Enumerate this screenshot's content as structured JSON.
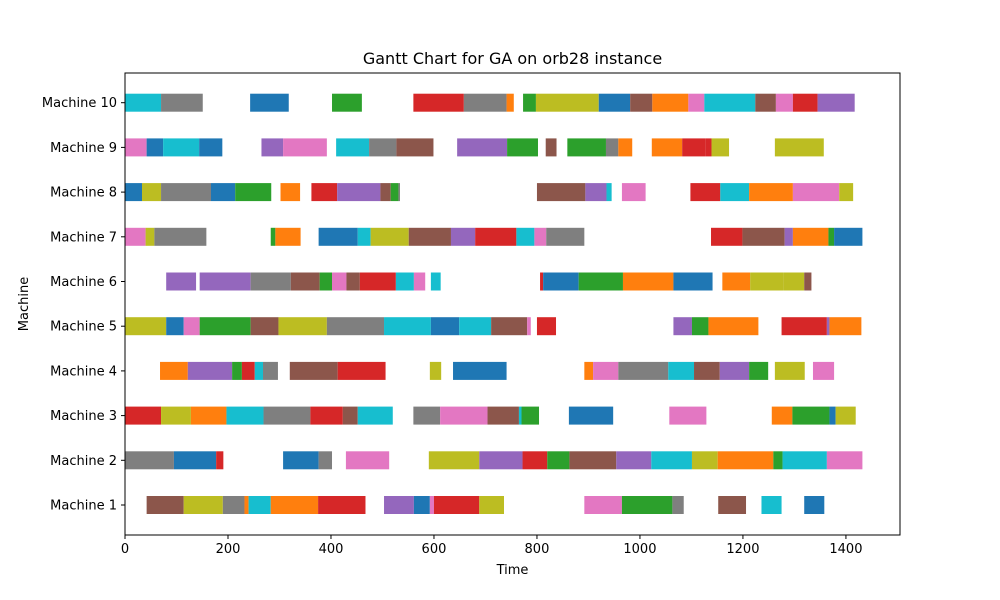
{
  "chart_data": {
    "type": "gantt",
    "title": "Gantt Chart for GA on orb28 instance",
    "xlabel": "Time",
    "ylabel": "Machine",
    "xlim": [
      0,
      1505
    ],
    "xticks": [
      0,
      200,
      400,
      600,
      800,
      1000,
      1200,
      1400
    ],
    "machines": [
      "Machine 1",
      "Machine 2",
      "Machine 3",
      "Machine 4",
      "Machine 5",
      "Machine 6",
      "Machine 7",
      "Machine 8",
      "Machine 9",
      "Machine 10"
    ],
    "colors": [
      "#1f77b4",
      "#ff7f0e",
      "#2ca02c",
      "#d62728",
      "#9467bd",
      "#8c564b",
      "#e377c2",
      "#7f7f7f",
      "#bcbd22",
      "#17becf"
    ],
    "tasks": [
      [
        [
          42,
          114,
          5
        ],
        [
          114,
          190,
          8
        ],
        [
          190,
          232,
          7
        ],
        [
          232,
          240,
          1
        ],
        [
          240,
          283,
          9
        ],
        [
          283,
          375,
          1
        ],
        [
          375,
          467,
          3
        ],
        [
          503,
          561,
          4
        ],
        [
          561,
          592,
          0
        ],
        [
          592,
          600,
          6
        ],
        [
          600,
          688,
          3
        ],
        [
          688,
          736,
          8
        ],
        [
          892,
          965,
          6
        ],
        [
          965,
          1063,
          2
        ],
        [
          1063,
          1085,
          7
        ],
        [
          1152,
          1206,
          5
        ],
        [
          1236,
          1275,
          9
        ],
        [
          1319,
          1358,
          0
        ]
      ],
      [
        [
          0,
          95,
          7
        ],
        [
          95,
          177,
          0
        ],
        [
          177,
          191,
          3
        ],
        [
          307,
          376,
          0
        ],
        [
          376,
          402,
          7
        ],
        [
          429,
          513,
          6
        ],
        [
          590,
          688,
          8
        ],
        [
          688,
          772,
          4
        ],
        [
          772,
          820,
          3
        ],
        [
          820,
          863,
          2
        ],
        [
          863,
          954,
          5
        ],
        [
          954,
          1022,
          4
        ],
        [
          1022,
          1101,
          9
        ],
        [
          1101,
          1151,
          8
        ],
        [
          1151,
          1259,
          1
        ],
        [
          1259,
          1277,
          2
        ],
        [
          1277,
          1363,
          9
        ],
        [
          1363,
          1432,
          6
        ]
      ],
      [
        [
          0,
          70,
          3
        ],
        [
          70,
          128,
          8
        ],
        [
          128,
          197,
          1
        ],
        [
          197,
          269,
          9
        ],
        [
          269,
          360,
          7
        ],
        [
          360,
          423,
          3
        ],
        [
          423,
          452,
          5
        ],
        [
          452,
          520,
          9
        ],
        [
          560,
          612,
          7
        ],
        [
          612,
          704,
          6
        ],
        [
          704,
          765,
          5
        ],
        [
          765,
          770,
          9
        ],
        [
          770,
          804,
          2
        ],
        [
          862,
          948,
          0
        ],
        [
          1057,
          1129,
          6
        ],
        [
          1256,
          1296,
          1
        ],
        [
          1296,
          1368,
          2
        ],
        [
          1368,
          1380,
          0
        ],
        [
          1380,
          1419,
          8
        ]
      ],
      [
        [
          68,
          122,
          1
        ],
        [
          122,
          208,
          4
        ],
        [
          208,
          227,
          2
        ],
        [
          227,
          252,
          3
        ],
        [
          252,
          268,
          9
        ],
        [
          268,
          297,
          7
        ],
        [
          320,
          413,
          5
        ],
        [
          413,
          506,
          3
        ],
        [
          592,
          614,
          8
        ],
        [
          637,
          741,
          0
        ],
        [
          892,
          909,
          1
        ],
        [
          909,
          958,
          6
        ],
        [
          958,
          1055,
          7
        ],
        [
          1055,
          1105,
          9
        ],
        [
          1105,
          1155,
          5
        ],
        [
          1155,
          1212,
          4
        ],
        [
          1212,
          1249,
          2
        ],
        [
          1262,
          1320,
          8
        ],
        [
          1336,
          1377,
          6
        ]
      ],
      [
        [
          0,
          80,
          8
        ],
        [
          80,
          114,
          0
        ],
        [
          114,
          145,
          6
        ],
        [
          145,
          244,
          2
        ],
        [
          244,
          298,
          5
        ],
        [
          298,
          392,
          8
        ],
        [
          392,
          503,
          7
        ],
        [
          503,
          594,
          9
        ],
        [
          594,
          649,
          0
        ],
        [
          649,
          711,
          9
        ],
        [
          711,
          781,
          5
        ],
        [
          781,
          788,
          6
        ],
        [
          800,
          837,
          3
        ],
        [
          1065,
          1101,
          4
        ],
        [
          1101,
          1133,
          2
        ],
        [
          1133,
          1230,
          1
        ],
        [
          1275,
          1363,
          3
        ],
        [
          1363,
          1368,
          4
        ],
        [
          1368,
          1430,
          1
        ]
      ],
      [
        [
          80,
          138,
          4
        ],
        [
          145,
          244,
          4
        ],
        [
          244,
          322,
          7
        ],
        [
          322,
          378,
          5
        ],
        [
          378,
          402,
          2
        ],
        [
          402,
          430,
          6
        ],
        [
          430,
          456,
          5
        ],
        [
          456,
          526,
          3
        ],
        [
          526,
          561,
          9
        ],
        [
          561,
          583,
          6
        ],
        [
          594,
          613,
          9
        ],
        [
          806,
          812,
          3
        ],
        [
          812,
          881,
          0
        ],
        [
          881,
          967,
          2
        ],
        [
          967,
          1065,
          1
        ],
        [
          1065,
          1141,
          0
        ],
        [
          1160,
          1214,
          1
        ],
        [
          1214,
          1279,
          8
        ],
        [
          1279,
          1319,
          8
        ],
        [
          1319,
          1333,
          5
        ]
      ],
      [
        [
          0,
          40,
          6
        ],
        [
          40,
          57,
          8
        ],
        [
          57,
          158,
          7
        ],
        [
          283,
          292,
          2
        ],
        [
          292,
          341,
          1
        ],
        [
          376,
          452,
          0
        ],
        [
          452,
          477,
          9
        ],
        [
          477,
          551,
          8
        ],
        [
          551,
          633,
          5
        ],
        [
          633,
          680,
          4
        ],
        [
          680,
          760,
          3
        ],
        [
          760,
          795,
          9
        ],
        [
          795,
          818,
          6
        ],
        [
          818,
          892,
          7
        ],
        [
          1138,
          1199,
          3
        ],
        [
          1199,
          1281,
          5
        ],
        [
          1281,
          1297,
          4
        ],
        [
          1297,
          1366,
          1
        ],
        [
          1366,
          1377,
          2
        ],
        [
          1377,
          1432,
          0
        ]
      ],
      [
        [
          0,
          33,
          0
        ],
        [
          33,
          70,
          8
        ],
        [
          70,
          167,
          7
        ],
        [
          167,
          214,
          0
        ],
        [
          214,
          284,
          2
        ],
        [
          302,
          340,
          1
        ],
        [
          362,
          412,
          3
        ],
        [
          412,
          496,
          4
        ],
        [
          496,
          516,
          5
        ],
        [
          516,
          531,
          2
        ],
        [
          531,
          534,
          7
        ],
        [
          800,
          894,
          5
        ],
        [
          894,
          935,
          4
        ],
        [
          935,
          945,
          9
        ],
        [
          965,
          1011,
          6
        ],
        [
          1098,
          1156,
          3
        ],
        [
          1156,
          1212,
          9
        ],
        [
          1212,
          1297,
          1
        ],
        [
          1297,
          1387,
          6
        ],
        [
          1387,
          1414,
          8
        ]
      ],
      [
        [
          0,
          42,
          6
        ],
        [
          42,
          74,
          0
        ],
        [
          74,
          144,
          9
        ],
        [
          144,
          189,
          0
        ],
        [
          265,
          307,
          4
        ],
        [
          307,
          392,
          6
        ],
        [
          410,
          474,
          9
        ],
        [
          474,
          527,
          7
        ],
        [
          527,
          599,
          5
        ],
        [
          645,
          742,
          4
        ],
        [
          742,
          802,
          2
        ],
        [
          817,
          838,
          5
        ],
        [
          859,
          934,
          2
        ],
        [
          934,
          958,
          7
        ],
        [
          958,
          985,
          1
        ],
        [
          1023,
          1082,
          1
        ],
        [
          1082,
          1127,
          3
        ],
        [
          1127,
          1139,
          3
        ],
        [
          1139,
          1173,
          8
        ],
        [
          1262,
          1357,
          8
        ]
      ],
      [
        [
          0,
          70,
          9
        ],
        [
          70,
          151,
          7
        ],
        [
          243,
          318,
          0
        ],
        [
          402,
          460,
          2
        ],
        [
          560,
          658,
          3
        ],
        [
          658,
          741,
          7
        ],
        [
          741,
          755,
          1
        ],
        [
          773,
          798,
          2
        ],
        [
          798,
          920,
          8
        ],
        [
          920,
          981,
          0
        ],
        [
          981,
          1024,
          5
        ],
        [
          1024,
          1094,
          1
        ],
        [
          1094,
          1125,
          6
        ],
        [
          1125,
          1224,
          9
        ],
        [
          1224,
          1264,
          5
        ],
        [
          1264,
          1297,
          6
        ],
        [
          1297,
          1345,
          3
        ],
        [
          1345,
          1417,
          4
        ]
      ]
    ]
  }
}
